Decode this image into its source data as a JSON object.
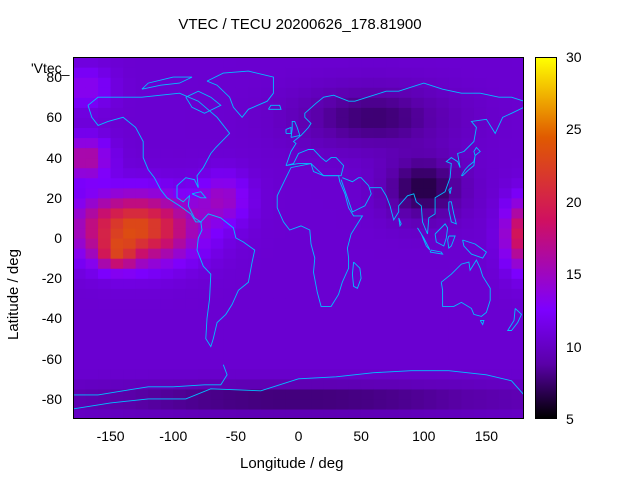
{
  "chart_data": {
    "type": "heatmap",
    "title": "VTEC / TECU 20200626_178.81900",
    "xlabel": "Longitude / deg",
    "ylabel": "Latitude / deg",
    "series_label": "'Vtec_",
    "xlim": [
      -180,
      180
    ],
    "ylim": [
      -90,
      90
    ],
    "x_ticks": [
      -150,
      -100,
      -50,
      0,
      50,
      100,
      150
    ],
    "y_ticks": [
      -80,
      -60,
      -40,
      -20,
      0,
      20,
      40,
      60,
      80
    ],
    "colorbar": {
      "range": [
        5,
        30
      ],
      "ticks": [
        5,
        10,
        15,
        20,
        25,
        30
      ]
    },
    "colormap": [
      "#000000",
      "#5a00a8",
      "#7d00ff",
      "#d01060",
      "#e05a00",
      "#ffff00"
    ],
    "coastline_color": "#00bfff",
    "field": {
      "grid_lon_step": 10,
      "grid_lat_step": 5,
      "background": 10.5,
      "features": [
        {
          "lon": -130,
          "lat": 5,
          "sx": 45,
          "sy": 16,
          "amp": 13
        },
        {
          "lon": -145,
          "lat": -8,
          "sx": 14,
          "sy": 7,
          "amp": 6
        },
        {
          "lon": -170,
          "lat": 40,
          "sx": 18,
          "sy": 10,
          "amp": 6
        },
        {
          "lon": -60,
          "lat": 20,
          "sx": 20,
          "sy": 12,
          "amp": 4
        },
        {
          "lon": 178,
          "lat": 2,
          "sx": 14,
          "sy": 16,
          "amp": 9
        },
        {
          "lon": 100,
          "lat": 25,
          "sx": 30,
          "sy": 15,
          "amp": -4
        },
        {
          "lon": 60,
          "lat": 60,
          "sx": 60,
          "sy": 15,
          "amp": -3
        },
        {
          "lon": 0,
          "lat": -80,
          "sx": 200,
          "sy": 8,
          "amp": -3
        },
        {
          "lon": -170,
          "lat": 75,
          "sx": 20,
          "sy": 10,
          "amp": 3
        }
      ]
    }
  }
}
